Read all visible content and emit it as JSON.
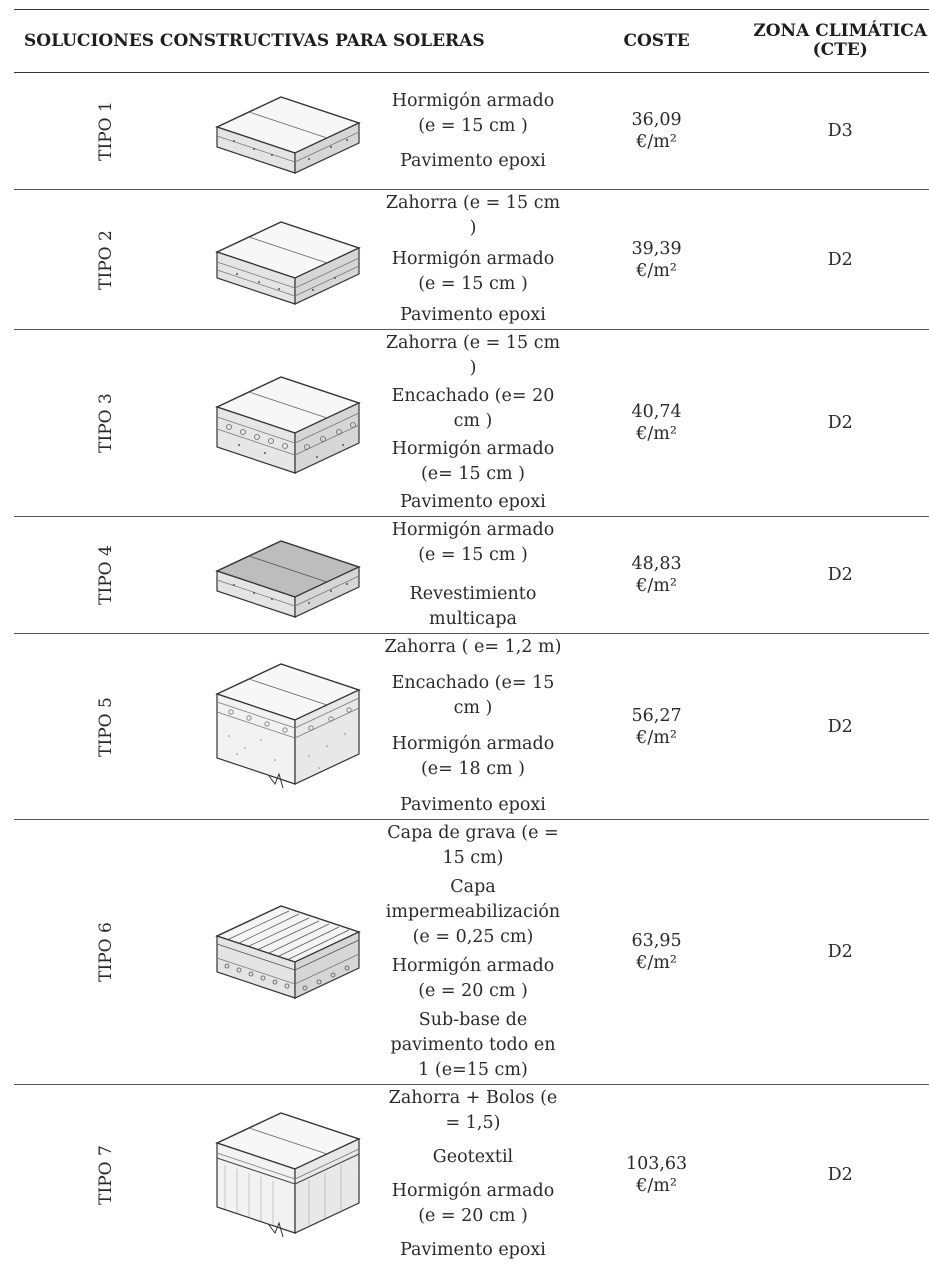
{
  "header": {
    "title": "SOLUCIONES CONSTRUCTIVAS PARA SOLERAS",
    "cost": "COSTE",
    "zone": "ZONA CLIMÁTICA (CTE)"
  },
  "rows": [
    {
      "label": "TIPO 1",
      "layers": [
        "Hormigón armado  (e = 15 cm )",
        "Pavimento epoxi"
      ],
      "cost_value": "36,09",
      "cost_unit": "€/m²",
      "zone": "D3"
    },
    {
      "label": "TIPO 2",
      "layers": [
        "Zahorra (e = 15 cm )",
        "Hormigón armado  (e = 15 cm )",
        "Pavimento epoxi"
      ],
      "cost_value": "39,39",
      "cost_unit": "€/m²",
      "zone": "D2"
    },
    {
      "label": "TIPO 3",
      "layers": [
        "Zahorra (e = 15 cm )",
        "Encachado   (e= 20 cm )",
        "Hormigón armado  (e= 15 cm )",
        "Pavimento epoxi"
      ],
      "cost_value": "40,74",
      "cost_unit": "€/m²",
      "zone": "D2"
    },
    {
      "label": "TIPO 4",
      "layers": [
        "Hormigón armado  (e = 15 cm )",
        "Revestimiento multicapa"
      ],
      "cost_value": "48,83",
      "cost_unit": "€/m²",
      "zone": "D2"
    },
    {
      "label": "TIPO 5",
      "layers": [
        "Zahorra ( e= 1,2 m)",
        "Encachado (e= 15 cm )",
        "Hormigón armado  (e= 18 cm )",
        "Pavimento epoxi"
      ],
      "cost_value": "56,27",
      "cost_unit": "€/m²",
      "zone": "D2"
    },
    {
      "label": "TIPO 6",
      "layers": [
        "Capa de grava (e = 15 cm)",
        "Capa impermeabilización (e = 0,25 cm)",
        "Hormigón armado  (e = 20 cm )",
        "Sub-base de pavimento todo en 1 (e=15 cm)"
      ],
      "cost_value": "63,95",
      "cost_unit": "€/m²",
      "zone": "D2"
    },
    {
      "label": "TIPO 7",
      "layers": [
        "Zahorra + Bolos (e = 1,5)",
        "Geotextil",
        "Hormigón armado  (e = 20 cm )",
        "Pavimento epoxi"
      ],
      "cost_value": "103,63",
      "cost_unit": "€/m²",
      "zone": "D2"
    }
  ]
}
